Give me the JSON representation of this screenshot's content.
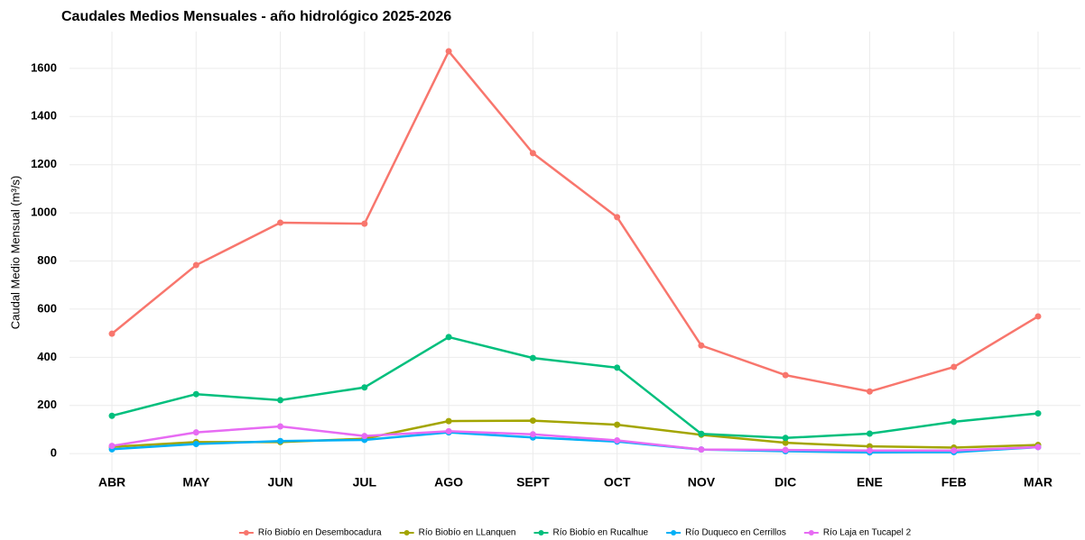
{
  "chart_data": {
    "type": "line",
    "title": "Caudales Medios Mensuales - año hidrológico 2025-2026",
    "y_label": "Caudal Medio Mensual (m³/s)",
    "categories": [
      "ABR",
      "MAY",
      "JUN",
      "JUL",
      "AGO",
      "SEPT",
      "OCT",
      "NOV",
      "DIC",
      "ENE",
      "FEB",
      "MAR"
    ],
    "series": [
      {
        "name": "Río Biobío en Desembocadura",
        "color": "#F8766D",
        "values": [
          498,
          783,
          959,
          955,
          1671,
          1248,
          982,
          449,
          326,
          258,
          360,
          570
        ]
      },
      {
        "name": "Río Biobío en LLanquen",
        "color": "#A3A500",
        "values": [
          28,
          48,
          48,
          62,
          135,
          137,
          120,
          78,
          45,
          30,
          25,
          36
        ]
      },
      {
        "name": "Río Biobío en Rucalhue",
        "color": "#00BF7D",
        "values": [
          157,
          247,
          222,
          275,
          484,
          397,
          357,
          82,
          65,
          83,
          132,
          167
        ]
      },
      {
        "name": "Río Duqueco en Cerrillos",
        "color": "#00B0F6",
        "values": [
          18,
          40,
          52,
          57,
          88,
          67,
          50,
          17,
          10,
          5,
          6,
          27
        ]
      },
      {
        "name": "Río Laja en Tucapel 2",
        "color": "#E76BF3",
        "values": [
          32,
          88,
          113,
          73,
          93,
          80,
          55,
          17,
          15,
          13,
          13,
          27
        ]
      }
    ],
    "ylim": [
      -78,
      1753
    ],
    "yticks": [
      0,
      200,
      400,
      600,
      800,
      1000,
      1200,
      1400,
      1600
    ],
    "grid": true,
    "legend": "bottom"
  }
}
